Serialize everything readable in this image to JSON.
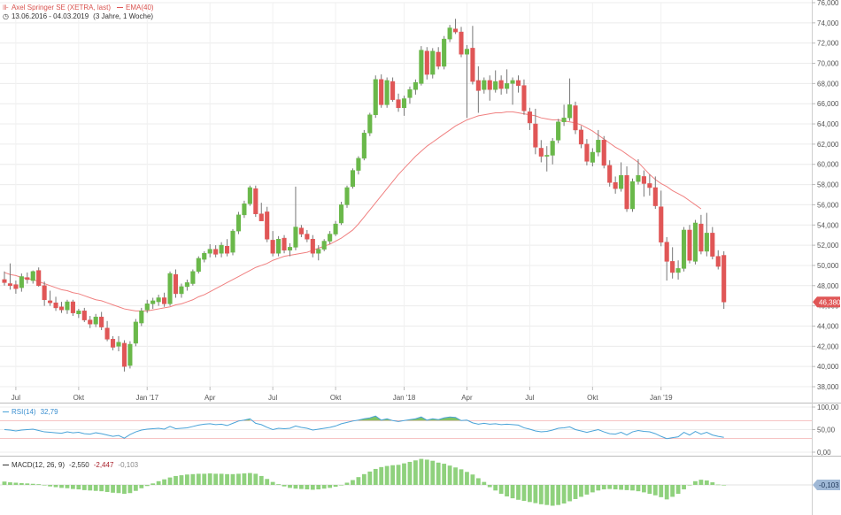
{
  "header": {
    "instrument": "Axel Springer SE (XETRA, last)",
    "indicator": "EMA(40)",
    "date_range": "13.06.2016 - 04.03.2019",
    "period": "(3 Jahre, 1 Woche)"
  },
  "rsi_panel": {
    "label": "RSI(14)",
    "value": "32,79"
  },
  "macd_panel": {
    "label": "MACD(12, 26, 9)",
    "macd": "-2,550",
    "signal": "-2,447",
    "hist": "-0,103",
    "badge": "-0,103"
  },
  "price_badge": "46,380",
  "colors": {
    "up": "#6ab84a",
    "down": "#e05656",
    "ema": "#f08080",
    "rsi": "#4aa3d8",
    "macd_hist": "#8fd17d",
    "badge": "#e05656"
  },
  "chart_data": [
    {
      "type": "candlestick",
      "title": "Axel Springer SE (XETRA, last)",
      "ylim": [
        38,
        76
      ],
      "y_ticks": [
        "38,000",
        "40,000",
        "42,000",
        "44,000",
        "46,000",
        "48,000",
        "50,000",
        "52,000",
        "54,000",
        "56,000",
        "58,000",
        "60,000",
        "62,000",
        "64,000",
        "66,000",
        "68,000",
        "70,000",
        "72,000",
        "74,000",
        "76,000"
      ],
      "x_ticks": [
        "Jul",
        "Okt",
        "Jan '17",
        "Apr",
        "Jul",
        "Okt",
        "Jan '18",
        "Apr",
        "Jul",
        "Okt",
        "Jan '19"
      ],
      "candles": [
        [
          48.6,
          49.4,
          48.0,
          48.3
        ],
        [
          48.2,
          50.2,
          47.6,
          48.0
        ],
        [
          48.1,
          48.5,
          47.2,
          47.7
        ],
        [
          47.8,
          49.2,
          47.4,
          48.9
        ],
        [
          48.8,
          49.3,
          48.2,
          48.6
        ],
        [
          48.5,
          49.5,
          48.2,
          49.4
        ],
        [
          49.5,
          49.8,
          47.9,
          48.0
        ],
        [
          48.0,
          48.4,
          46.0,
          46.6
        ],
        [
          46.5,
          47.5,
          46.0,
          46.3
        ],
        [
          46.3,
          46.9,
          45.5,
          45.8
        ],
        [
          45.9,
          46.4,
          45.3,
          45.6
        ],
        [
          45.6,
          46.6,
          45.2,
          46.4
        ],
        [
          46.4,
          46.6,
          45.0,
          45.3
        ],
        [
          45.2,
          45.7,
          44.8,
          45.5
        ],
        [
          45.5,
          45.8,
          44.4,
          44.6
        ],
        [
          44.6,
          45.0,
          43.8,
          44.2
        ],
        [
          44.2,
          45.2,
          43.9,
          44.9
        ],
        [
          44.9,
          45.4,
          43.6,
          43.9
        ],
        [
          43.8,
          44.5,
          42.5,
          42.7
        ],
        [
          42.7,
          43.0,
          41.6,
          41.9
        ],
        [
          42.0,
          43.0,
          41.5,
          42.4
        ],
        [
          42.3,
          42.6,
          39.5,
          40.0
        ],
        [
          40.1,
          42.5,
          39.8,
          42.2
        ],
        [
          42.3,
          44.7,
          42.0,
          44.4
        ],
        [
          44.3,
          45.8,
          44.0,
          45.5
        ],
        [
          45.6,
          46.6,
          45.3,
          46.2
        ],
        [
          46.2,
          46.8,
          45.7,
          46.5
        ],
        [
          46.4,
          47.1,
          46.0,
          46.8
        ],
        [
          46.8,
          47.3,
          45.9,
          46.2
        ],
        [
          46.2,
          49.4,
          46.0,
          49.2
        ],
        [
          49.1,
          49.6,
          46.8,
          47.2
        ],
        [
          47.2,
          48.2,
          46.8,
          47.9
        ],
        [
          47.9,
          48.6,
          47.5,
          48.3
        ],
        [
          48.2,
          49.6,
          48.0,
          49.4
        ],
        [
          49.4,
          50.9,
          49.2,
          50.7
        ],
        [
          50.6,
          51.4,
          50.3,
          51.2
        ],
        [
          51.2,
          52.1,
          50.8,
          51.6
        ],
        [
          51.6,
          52.0,
          50.8,
          51.1
        ],
        [
          51.2,
          52.3,
          50.8,
          52.0
        ],
        [
          51.9,
          52.6,
          50.9,
          51.2
        ],
        [
          51.3,
          53.6,
          51.0,
          53.4
        ],
        [
          53.4,
          55.3,
          53.1,
          55.0
        ],
        [
          55.0,
          56.4,
          54.7,
          56.1
        ],
        [
          56.1,
          57.9,
          55.9,
          57.7
        ],
        [
          57.6,
          57.9,
          54.8,
          55.1
        ],
        [
          55.1,
          56.2,
          54.6,
          54.4
        ],
        [
          55.3,
          55.8,
          52.3,
          52.6
        ],
        [
          52.5,
          53.4,
          50.9,
          51.2
        ],
        [
          51.2,
          52.9,
          50.9,
          52.6
        ],
        [
          52.7,
          53.0,
          51.2,
          51.5
        ],
        [
          51.5,
          52.2,
          50.9,
          51.8
        ],
        [
          51.8,
          57.8,
          51.5,
          53.8
        ],
        [
          53.7,
          54.0,
          52.8,
          53.1
        ],
        [
          53.1,
          53.5,
          52.3,
          52.6
        ],
        [
          52.6,
          53.0,
          50.8,
          51.2
        ],
        [
          51.2,
          52.0,
          50.5,
          51.6
        ],
        [
          51.6,
          52.6,
          51.4,
          52.4
        ],
        [
          52.4,
          53.4,
          52.1,
          53.1
        ],
        [
          53.1,
          54.4,
          52.9,
          54.1
        ],
        [
          54.2,
          56.3,
          54.0,
          56.0
        ],
        [
          56.0,
          57.9,
          55.7,
          57.7
        ],
        [
          57.8,
          59.6,
          57.6,
          59.4
        ],
        [
          59.4,
          60.8,
          59.0,
          60.6
        ],
        [
          60.6,
          63.4,
          60.4,
          63.1
        ],
        [
          63.1,
          65.1,
          62.8,
          64.9
        ],
        [
          64.9,
          68.8,
          64.6,
          68.4
        ],
        [
          68.4,
          68.9,
          65.6,
          65.9
        ],
        [
          65.9,
          68.6,
          65.6,
          68.3
        ],
        [
          68.2,
          68.6,
          66.2,
          66.4
        ],
        [
          66.4,
          67.0,
          65.2,
          65.6
        ],
        [
          65.6,
          66.8,
          64.8,
          66.5
        ],
        [
          66.6,
          67.7,
          66.0,
          67.4
        ],
        [
          67.4,
          68.4,
          66.9,
          68.1
        ],
        [
          68.0,
          71.7,
          67.8,
          71.3
        ],
        [
          71.2,
          71.6,
          68.4,
          68.9
        ],
        [
          68.9,
          71.5,
          68.5,
          71.2
        ],
        [
          71.1,
          71.6,
          69.4,
          69.7
        ],
        [
          69.7,
          72.7,
          69.4,
          72.4
        ],
        [
          72.4,
          73.8,
          72.1,
          73.5
        ],
        [
          73.4,
          74.4,
          72.9,
          73.1
        ],
        [
          73.1,
          73.6,
          70.6,
          70.9
        ],
        [
          70.9,
          71.8,
          64.6,
          71.4
        ],
        [
          71.5,
          73.7,
          67.9,
          68.2
        ],
        [
          68.3,
          69.7,
          65.1,
          67.3
        ],
        [
          67.4,
          68.6,
          67.0,
          68.3
        ],
        [
          68.3,
          68.8,
          66.3,
          67.4
        ],
        [
          67.4,
          69.3,
          67.1,
          68.2
        ],
        [
          68.3,
          68.8,
          66.9,
          67.5
        ],
        [
          67.5,
          69.4,
          67.0,
          68.0
        ],
        [
          68.0,
          68.6,
          65.9,
          68.3
        ],
        [
          68.3,
          68.8,
          67.1,
          67.8
        ],
        [
          67.8,
          68.4,
          64.9,
          65.3
        ],
        [
          65.2,
          65.6,
          63.4,
          64.1
        ],
        [
          64.0,
          65.5,
          61.0,
          61.7
        ],
        [
          61.6,
          62.4,
          60.2,
          60.8
        ],
        [
          60.8,
          61.8,
          59.3,
          60.9
        ],
        [
          60.9,
          62.6,
          60.0,
          62.3
        ],
        [
          62.4,
          64.5,
          62.1,
          64.2
        ],
        [
          64.2,
          65.9,
          63.8,
          64.6
        ],
        [
          64.6,
          68.5,
          64.3,
          65.9
        ],
        [
          65.8,
          66.2,
          63.0,
          63.4
        ],
        [
          63.4,
          63.8,
          61.6,
          62.0
        ],
        [
          62.0,
          62.5,
          59.9,
          60.3
        ],
        [
          60.2,
          61.6,
          59.8,
          61.2
        ],
        [
          61.2,
          63.4,
          60.8,
          62.4
        ],
        [
          62.4,
          62.8,
          59.6,
          59.9
        ],
        [
          59.9,
          60.4,
          57.8,
          58.2
        ],
        [
          58.2,
          58.8,
          57.1,
          57.6
        ],
        [
          57.6,
          60.2,
          57.3,
          58.9
        ],
        [
          58.9,
          59.8,
          55.3,
          55.6
        ],
        [
          55.6,
          58.6,
          55.3,
          58.3
        ],
        [
          58.3,
          60.5,
          58.0,
          58.9
        ],
        [
          58.8,
          59.4,
          56.8,
          58.1
        ],
        [
          58.1,
          59.0,
          56.9,
          57.7
        ],
        [
          57.7,
          58.8,
          55.6,
          55.9
        ],
        [
          55.8,
          57.4,
          51.9,
          52.3
        ],
        [
          52.3,
          52.8,
          48.5,
          50.4
        ],
        [
          50.4,
          51.8,
          48.7,
          49.3
        ],
        [
          49.3,
          50.5,
          48.6,
          49.7
        ],
        [
          49.7,
          53.8,
          49.4,
          53.5
        ],
        [
          53.5,
          54.0,
          50.2,
          50.5
        ],
        [
          50.4,
          54.5,
          50.1,
          54.2
        ],
        [
          54.1,
          55.0,
          51.1,
          51.4
        ],
        [
          51.4,
          55.2,
          50.9,
          53.2
        ],
        [
          53.2,
          53.8,
          50.6,
          50.9
        ],
        [
          50.9,
          51.5,
          49.6,
          49.9
        ],
        [
          51.0,
          51.4,
          45.7,
          46.38
        ]
      ],
      "ema_series": [
        49.3,
        49.1,
        49.0,
        48.8,
        48.7,
        48.6,
        48.4,
        48.2,
        48.0,
        47.8,
        47.6,
        47.5,
        47.3,
        47.2,
        47.0,
        46.8,
        46.6,
        46.5,
        46.3,
        46.1,
        45.9,
        45.7,
        45.6,
        45.5,
        45.5,
        45.5,
        45.6,
        45.7,
        45.8,
        45.9,
        46.1,
        46.2,
        46.4,
        46.6,
        46.9,
        47.1,
        47.4,
        47.7,
        48.0,
        48.3,
        48.6,
        48.9,
        49.2,
        49.5,
        49.8,
        50.0,
        50.2,
        50.5,
        50.7,
        50.9,
        51.0,
        51.1,
        51.2,
        51.3,
        51.5,
        51.7,
        51.9,
        52.1,
        52.4,
        52.7,
        53.1,
        53.5,
        54.1,
        54.8,
        55.5,
        56.2,
        56.9,
        57.6,
        58.3,
        59.0,
        59.6,
        60.2,
        60.8,
        61.3,
        61.8,
        62.2,
        62.6,
        63.0,
        63.4,
        63.8,
        64.1,
        64.4,
        64.6,
        64.8,
        64.9,
        65.0,
        65.1,
        65.1,
        65.2,
        65.2,
        65.1,
        65.0,
        64.9,
        64.8,
        64.6,
        64.5,
        64.4,
        64.4,
        64.3,
        64.2,
        64.1,
        63.9,
        63.6,
        63.3,
        62.9,
        62.5,
        62.1,
        61.7,
        61.4,
        61.0,
        60.6,
        60.2,
        59.6,
        59.0,
        58.5,
        58.1,
        57.8,
        57.4,
        57.1,
        56.8,
        56.4,
        56.0,
        55.6
      ]
    },
    {
      "type": "line",
      "title": "RSI(14)",
      "ylim": [
        0,
        100
      ],
      "y_ticks": [
        "0,00",
        "50,00",
        "100,00"
      ],
      "levels": [
        30,
        70
      ],
      "series": [
        {
          "name": "RSI(14)",
          "values": [
            50,
            49,
            47,
            49,
            50,
            51,
            48,
            45,
            44,
            43,
            42,
            45,
            43,
            44,
            41,
            40,
            43,
            41,
            38,
            35,
            37,
            31,
            39,
            45,
            49,
            51,
            52,
            53,
            51,
            57,
            52,
            53,
            54,
            57,
            60,
            62,
            63,
            61,
            62,
            59,
            64,
            69,
            71,
            74,
            64,
            61,
            55,
            50,
            53,
            52,
            53,
            58,
            55,
            53,
            49,
            51,
            53,
            55,
            58,
            63,
            66,
            69,
            71,
            74,
            76,
            80,
            71,
            74,
            70,
            68,
            70,
            72,
            74,
            78,
            71,
            74,
            72,
            76,
            78,
            77,
            70,
            71,
            65,
            62,
            64,
            62,
            63,
            61,
            62,
            61,
            60,
            54,
            51,
            47,
            45,
            46,
            49,
            53,
            54,
            56,
            50,
            47,
            44,
            47,
            50,
            45,
            41,
            40,
            44,
            38,
            45,
            48,
            46,
            45,
            41,
            35,
            30,
            32,
            34,
            44,
            38,
            46,
            40,
            44,
            38,
            35,
            32.79
          ]
        }
      ]
    },
    {
      "type": "bar",
      "title": "MACD(12, 26, 9)",
      "series": [
        {
          "name": "MACD(12, 26, 9)",
          "values": [
            0.9,
            0.7,
            0.6,
            0.5,
            0.4,
            0.3,
            0.2,
            -0.1,
            -0.4,
            -0.6,
            -0.8,
            -0.9,
            -1.1,
            -1.2,
            -1.4,
            -1.5,
            -1.6,
            -1.7,
            -1.9,
            -2.1,
            -2.2,
            -2.4,
            -2.2,
            -1.6,
            -0.9,
            -0.3,
            0.4,
            1.0,
            1.5,
            2.0,
            2.4,
            2.6,
            2.8,
            2.9,
            3.0,
            3.0,
            3.1,
            3.0,
            3.0,
            2.9,
            2.9,
            3.0,
            3.1,
            3.2,
            3.0,
            2.4,
            1.6,
            0.8,
            0.2,
            -0.4,
            -0.8,
            -1.0,
            -1.1,
            -1.2,
            -1.3,
            -1.2,
            -1.0,
            -0.8,
            -0.5,
            0.0,
            0.6,
            1.3,
            2.1,
            2.9,
            3.6,
            4.3,
            4.8,
            5.1,
            5.3,
            5.4,
            5.8,
            6.2,
            6.6,
            7.0,
            6.8,
            6.5,
            6.0,
            5.7,
            5.2,
            4.7,
            4.2,
            3.5,
            2.8,
            1.8,
            0.8,
            -0.6,
            -1.5,
            -2.4,
            -3.1,
            -3.6,
            -4.0,
            -4.3,
            -4.6,
            -4.9,
            -5.2,
            -5.4,
            -5.6,
            -5.4,
            -5.0,
            -4.4,
            -3.8,
            -3.2,
            -2.6,
            -2.0,
            -1.5,
            -1.2,
            -1.1,
            -1.2,
            -1.3,
            -1.4,
            -1.5,
            -1.7,
            -2.0,
            -2.4,
            -2.8,
            -3.3,
            -3.9,
            -3.2,
            -2.4,
            -1.2,
            -0.1,
            1.0,
            1.4,
            1.2,
            0.7,
            0.1,
            -0.103
          ]
        }
      ]
    }
  ]
}
